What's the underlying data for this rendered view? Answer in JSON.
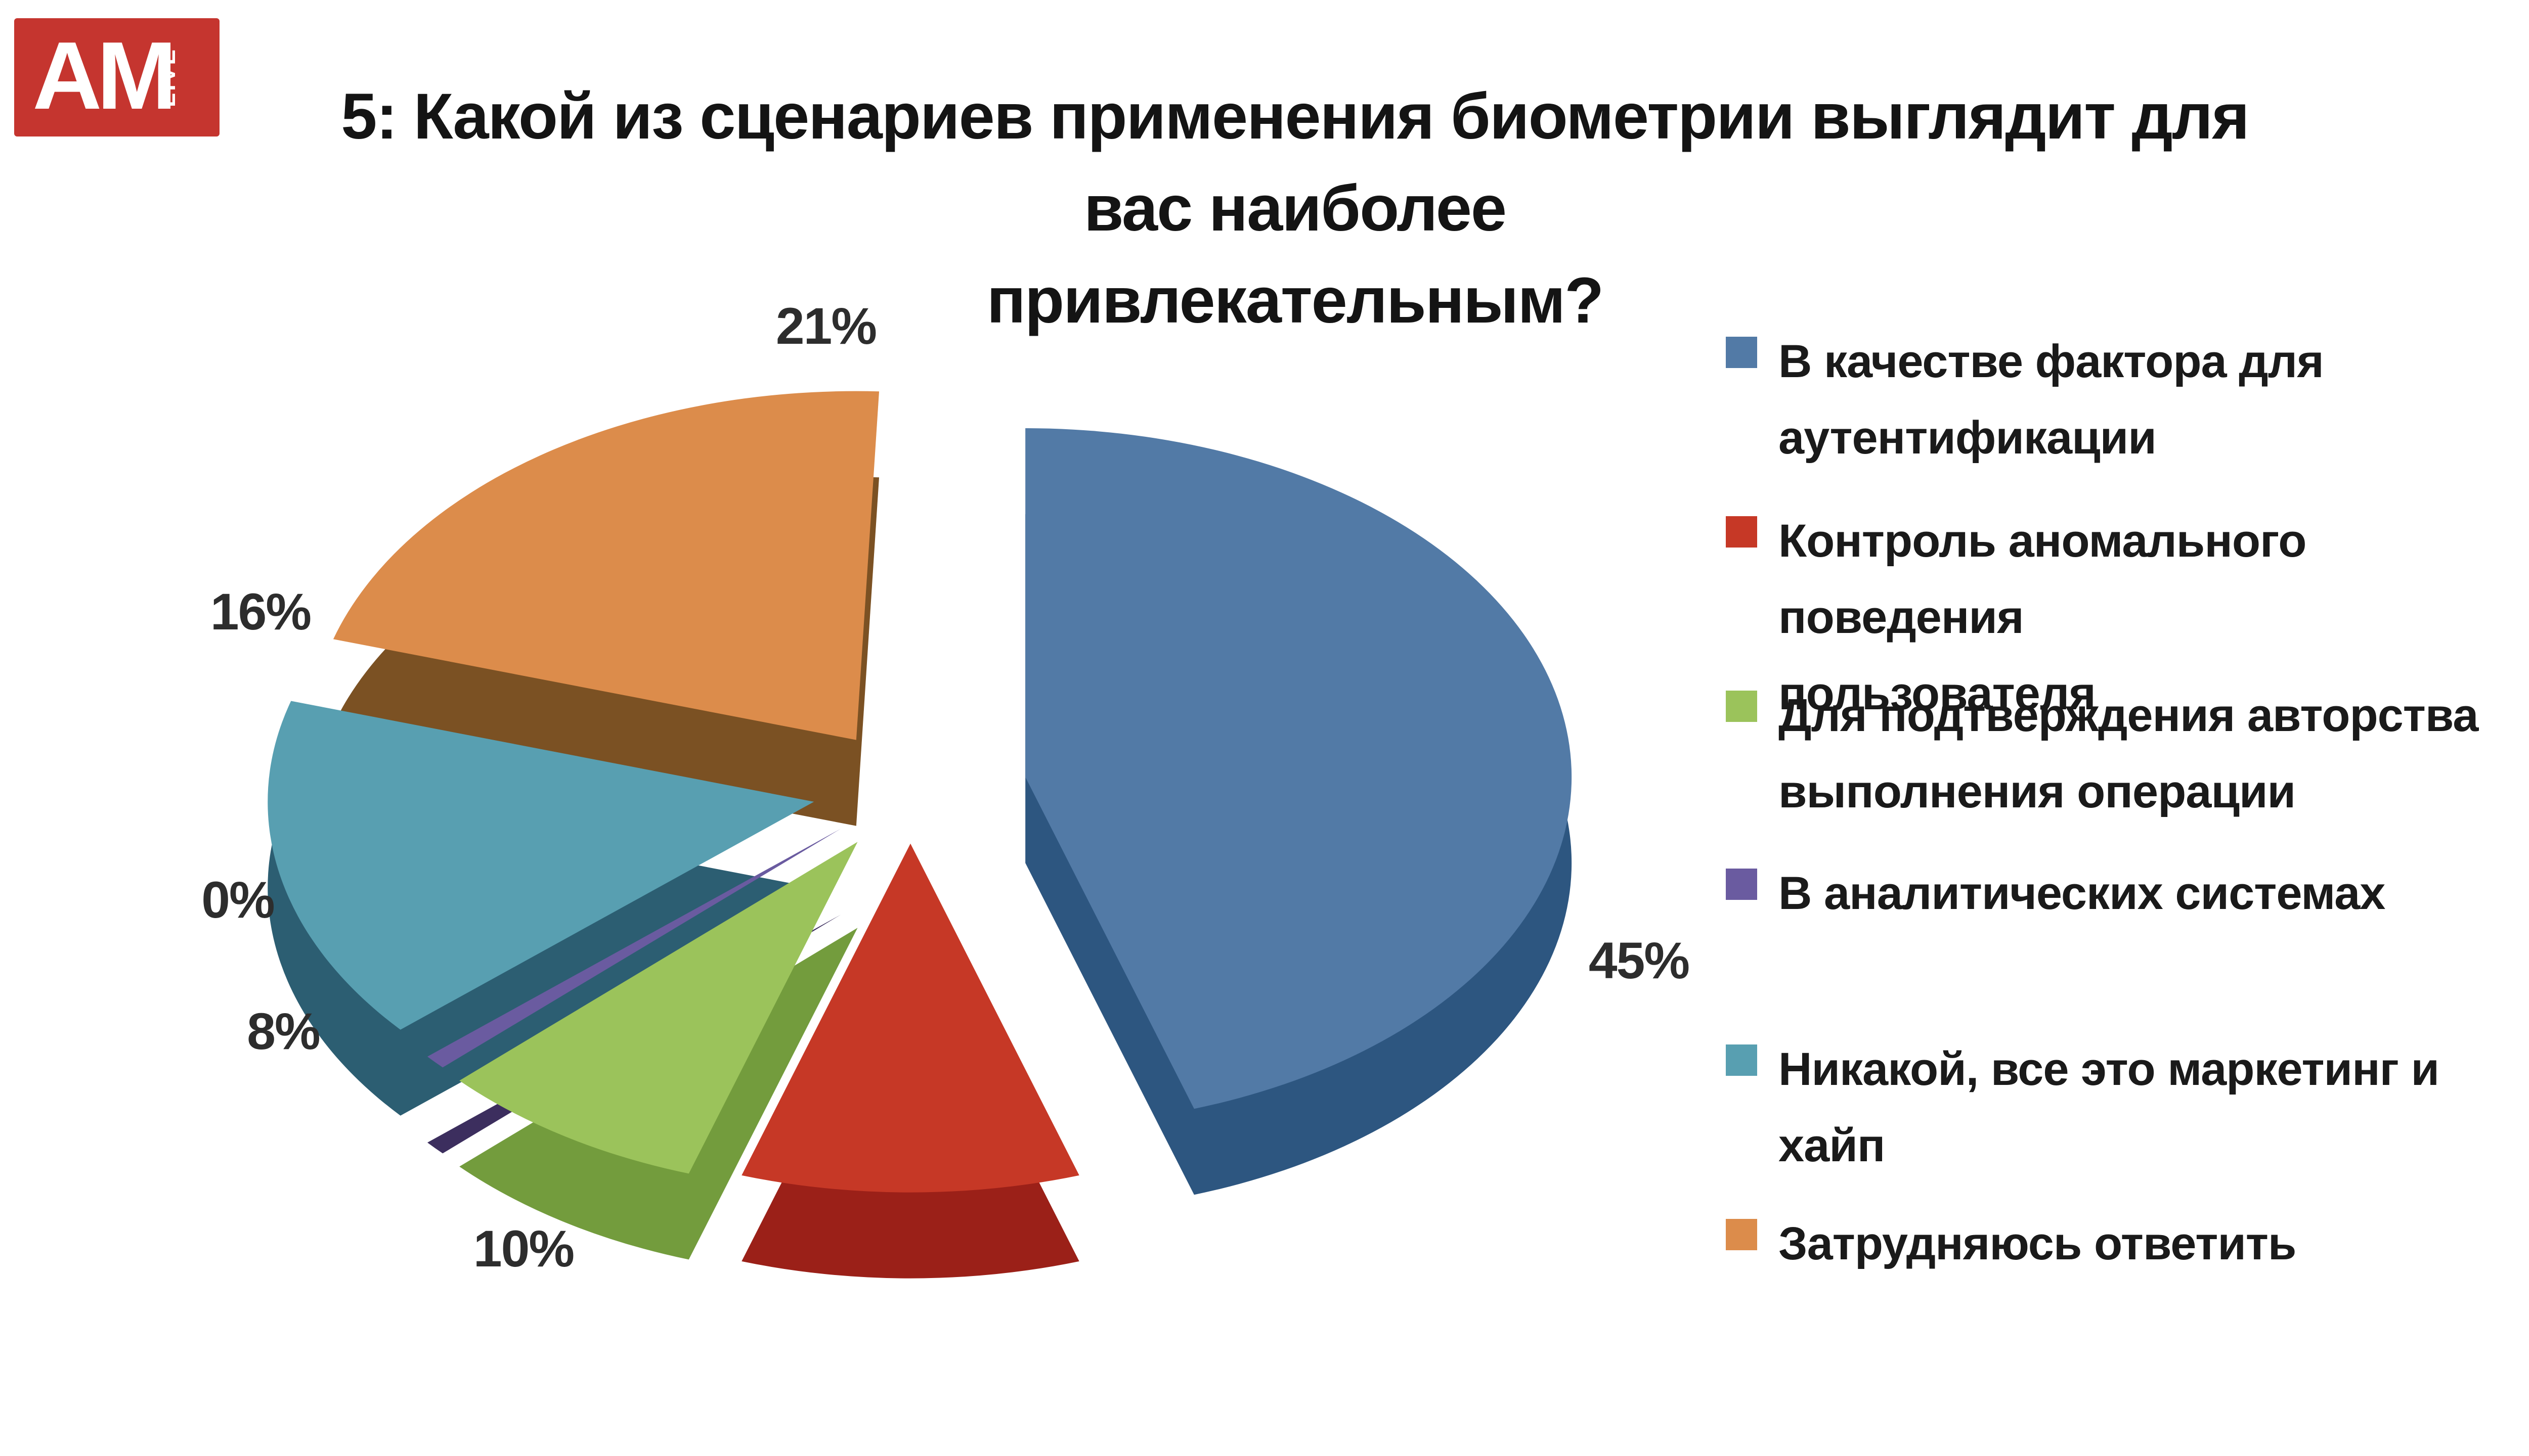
{
  "logo": {
    "text": "AM",
    "sub": "LIVE",
    "bg_color": "#c5352f",
    "fg_color": "#ffffff"
  },
  "title": "5: Какой из сценариев применения биометрии выглядит для вас наиболее\nпривлекательным?",
  "chart_data": {
    "type": "pie",
    "is_3d": true,
    "exploded": true,
    "start_angle_deg": 0,
    "direction": "clockwise",
    "legend_position": "right",
    "background": "#ffffff",
    "title": "5: Какой из сценариев применения биометрии выглядит для вас наиболее привлекательным?",
    "series": [
      {
        "label": "В качестве фактора для\nаутентификации",
        "value": 45,
        "percent_label": "45%",
        "color": "#527aa6",
        "side_color": "#2d5680"
      },
      {
        "label": "Контроль аномального поведения\nпользователя",
        "value": 10,
        "percent_label": "10%",
        "color": "#c63826",
        "side_color": "#9b2018"
      },
      {
        "label": "Для подтверждения авторства\nвыполнения операции",
        "value": 8,
        "percent_label": "8%",
        "color": "#9bc35b",
        "side_color": "#739c3d"
      },
      {
        "label": "В аналитических системах",
        "value": 0,
        "percent_label": "0%",
        "color": "#6a5ba0",
        "side_color": "#3c2e5e"
      },
      {
        "label": "Никакой, все это маркетинг и хайп",
        "value": 16,
        "percent_label": "16%",
        "color": "#589fb1",
        "side_color": "#2c5e72"
      },
      {
        "label": "Затрудняюсь ответить",
        "value": 21,
        "percent_label": "21%",
        "color": "#dc8c4b",
        "side_color": "#7b5123"
      }
    ]
  }
}
